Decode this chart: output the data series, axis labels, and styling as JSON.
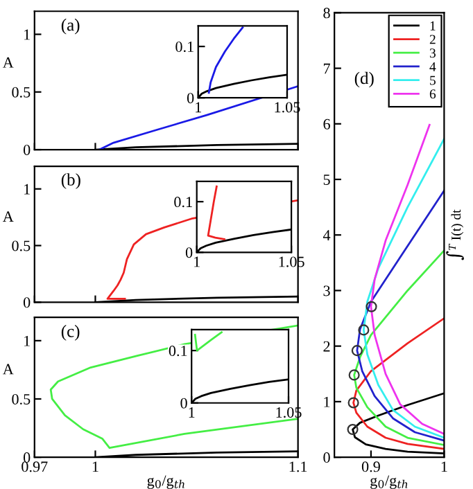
{
  "chart_data": [
    {
      "type": "line",
      "ylabel": "A",
      "annotations": [
        "(a)"
      ],
      "xlim": [
        0.97,
        1.1
      ],
      "xticks": [
        0.97,
        1,
        1.1
      ],
      "ylim": [
        0,
        1.2
      ],
      "yticks": [
        0,
        0.5,
        1
      ],
      "tick_labels": "y",
      "series": [
        {
          "color": "#000000",
          "x": [
            1,
            1.02,
            1.06,
            1.1
          ],
          "values": [
            0,
            0.02,
            0.04,
            0.05
          ]
        },
        {
          "color": "#1a1ae6",
          "x": [
            1.002,
            1.009,
            1.03,
            1.055,
            1.1
          ],
          "values": [
            0,
            0.06,
            0.17,
            0.3,
            0.55
          ]
        }
      ]
    },
    {
      "type": "line",
      "xlim": [
        1,
        1.05
      ],
      "xticks": [
        1,
        1.05
      ],
      "ylim": [
        0,
        0.14
      ],
      "yticks": [
        0,
        0.1
      ],
      "series": [
        {
          "color": "#000000",
          "x": [
            1,
            1.002,
            1.005,
            1.01,
            1.02,
            1.03,
            1.04,
            1.05
          ],
          "values": [
            0,
            0.008,
            0.013,
            0.019,
            0.027,
            0.034,
            0.04,
            0.045
          ]
        },
        {
          "color": "#1a1ae6",
          "x": [
            1.006,
            1.007,
            1.01,
            1.015,
            1.02,
            1.025
          ],
          "values": [
            0.01,
            0.03,
            0.06,
            0.09,
            0.115,
            0.137
          ]
        }
      ]
    },
    {
      "type": "line",
      "ylabel": "A",
      "annotations": [
        "(b)"
      ],
      "xlim": [
        0.97,
        1.1
      ],
      "xticks": [
        0.97,
        1,
        1.1
      ],
      "ylim": [
        0,
        1.2
      ],
      "yticks": [
        0,
        0.5,
        1
      ],
      "tick_labels": "y",
      "series": [
        {
          "color": "#000000",
          "x": [
            1,
            1.02,
            1.06,
            1.1
          ],
          "values": [
            0,
            0.02,
            0.04,
            0.05
          ]
        },
        {
          "color": "#ee2222",
          "x": [
            1.0146,
            1.0098,
            1.006,
            1.009,
            1.011,
            1.0125,
            1.014,
            1.0156,
            1.019,
            1.025,
            1.034,
            1.048,
            1.1
          ],
          "values": [
            0.03,
            0.03,
            0.03,
            0.1,
            0.15,
            0.2,
            0.26,
            0.38,
            0.51,
            0.6,
            0.66,
            0.74,
            0.9
          ]
        }
      ]
    },
    {
      "type": "line",
      "xlim": [
        1,
        1.05
      ],
      "xticks": [
        1,
        1.05
      ],
      "ylim": [
        0,
        0.14
      ],
      "yticks": [
        0,
        0.1
      ],
      "series": [
        {
          "color": "#000000",
          "x": [
            1,
            1.002,
            1.005,
            1.01,
            1.02,
            1.03,
            1.04,
            1.05
          ],
          "values": [
            0,
            0.008,
            0.013,
            0.019,
            0.027,
            0.034,
            0.04,
            0.045
          ]
        },
        {
          "color": "#ee2222",
          "x": [
            1.0146,
            1.0098,
            1.006,
            1.009,
            1.0105
          ],
          "values": [
            0.026,
            0.029,
            0.033,
            0.1,
            0.13
          ]
        }
      ]
    },
    {
      "type": "line",
      "ylabel": "A",
      "xlabel": "g$_{0}$/g$_{th}$",
      "annotations": [
        "(c)"
      ],
      "xlim": [
        0.97,
        1.1
      ],
      "xticks": [
        0.97,
        1,
        1.1
      ],
      "ylim": [
        0,
        1.2
      ],
      "yticks": [
        0,
        0.5,
        1
      ],
      "series": [
        {
          "color": "#000000",
          "x": [
            1,
            1.02,
            1.06,
            1.1
          ],
          "values": [
            0,
            0.02,
            0.04,
            0.05
          ]
        },
        {
          "color": "#44ee44",
          "x": [
            1.1,
            1.044,
            1.0207,
            0.9977,
            0.9816,
            0.978,
            0.9787,
            0.985,
            0.994,
            1.0034,
            1.007,
            1.044,
            1.1
          ],
          "values": [
            1.13,
            0.97,
            0.87,
            0.77,
            0.65,
            0.58,
            0.5,
            0.36,
            0.24,
            0.16,
            0.08,
            0.2,
            0.33
          ]
        }
      ]
    },
    {
      "type": "line",
      "xlim": [
        1,
        1.05
      ],
      "xticks": [
        1,
        1.05
      ],
      "ylim": [
        0,
        0.14
      ],
      "yticks": [
        0,
        0.1
      ],
      "series": [
        {
          "color": "#000000",
          "x": [
            1,
            1.002,
            1.005,
            1.01,
            1.02,
            1.03,
            1.04,
            1.05
          ],
          "values": [
            0,
            0.008,
            0.013,
            0.019,
            0.027,
            0.034,
            0.04,
            0.045
          ]
        },
        {
          "color": "#44ee44",
          "x": [
            1.0018,
            1.0028,
            1.01,
            1.0155
          ],
          "values": [
            0.13,
            0.1,
            0.12,
            0.135
          ]
        }
      ]
    },
    {
      "type": "line",
      "xlabel": "g$_{0}$/g$_{th}$",
      "ylabel": "∫$^{T}$ I(t) dt",
      "annotations": [
        "(d)"
      ],
      "xlim": [
        0.85,
        1
      ],
      "xticks": [
        0.9,
        1
      ],
      "ylim": [
        0,
        8
      ],
      "yticks": [
        0,
        1,
        2,
        3,
        4,
        5,
        6,
        7,
        8
      ],
      "legend": "top right",
      "series": [
        {
          "name": "1",
          "color": "#000000",
          "x": [
            1,
            0.95,
            0.92,
            0.893,
            0.878,
            0.875,
            0.885,
            0.91,
            0.95,
            1
          ],
          "values": [
            0.07,
            0.1,
            0.15,
            0.23,
            0.36,
            0.5,
            0.62,
            0.75,
            0.94,
            1.15
          ]
        },
        {
          "name": "2",
          "color": "#ee2222",
          "x": [
            1,
            0.95,
            0.92,
            0.895,
            0.88,
            0.876,
            0.88,
            0.9,
            0.95,
            1
          ],
          "values": [
            0.15,
            0.24,
            0.35,
            0.55,
            0.8,
            0.98,
            1.2,
            1.55,
            2.05,
            2.5
          ]
        },
        {
          "name": "3",
          "color": "#44ee44",
          "x": [
            1,
            0.95,
            0.92,
            0.895,
            0.88,
            0.877,
            0.885,
            0.9,
            0.95,
            1
          ],
          "values": [
            0.22,
            0.35,
            0.55,
            0.9,
            1.25,
            1.48,
            1.8,
            2.2,
            3.0,
            3.72
          ]
        },
        {
          "name": "4",
          "color": "#2222cc",
          "x": [
            1,
            0.96,
            0.93,
            0.905,
            0.888,
            0.881,
            0.885,
            0.9,
            0.94,
            1
          ],
          "values": [
            0.3,
            0.45,
            0.7,
            1.1,
            1.55,
            1.92,
            2.3,
            2.8,
            3.6,
            4.8
          ]
        },
        {
          "name": "5",
          "color": "#33eeee",
          "x": [
            1,
            0.96,
            0.93,
            0.91,
            0.895,
            0.89,
            0.895,
            0.91,
            0.95,
            1
          ],
          "values": [
            0.35,
            0.55,
            0.85,
            1.3,
            1.85,
            2.29,
            2.8,
            3.4,
            4.5,
            5.73
          ]
        },
        {
          "name": "6",
          "color": "#ee33ee",
          "x": [
            1,
            0.97,
            0.94,
            0.92,
            0.905,
            0.9,
            0.905,
            0.92,
            0.95,
            0.98
          ],
          "values": [
            0.42,
            0.6,
            0.95,
            1.5,
            2.2,
            2.71,
            3.2,
            3.9,
            4.9,
            5.98
          ]
        },
        {
          "type": "scatter",
          "marker": "circle",
          "color": "#333333",
          "x": [
            0.875,
            0.876,
            0.877,
            0.881,
            0.89,
            0.9006
          ],
          "values": [
            0.5,
            0.98,
            1.48,
            1.92,
            2.29,
            2.71
          ]
        }
      ]
    }
  ]
}
